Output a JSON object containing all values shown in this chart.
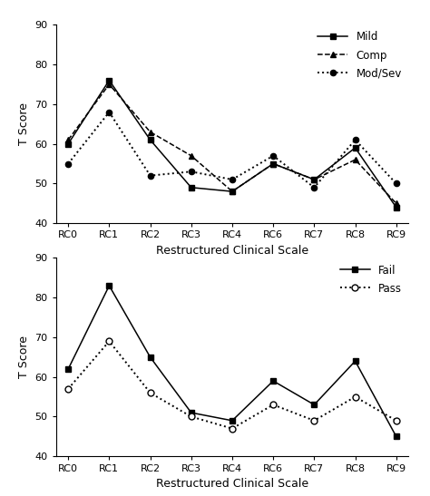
{
  "x_labels": [
    "RC0",
    "RC1",
    "RC2",
    "RC3",
    "RC4",
    "RC6",
    "RC7",
    "RC8",
    "RC9"
  ],
  "top": {
    "mild": [
      60,
      76,
      61,
      49,
      48,
      55,
      51,
      59,
      44
    ],
    "comp": [
      61,
      75,
      63,
      57,
      48,
      55,
      51,
      56,
      45
    ],
    "modsev": [
      55,
      68,
      52,
      53,
      51,
      57,
      49,
      61,
      50
    ],
    "legend": [
      "Mild",
      "Comp",
      "Mod/Sev"
    ],
    "ylabel": "T Score",
    "xlabel": "Restructured Clinical Scale",
    "ylim": [
      40,
      90
    ],
    "yticks": [
      40,
      50,
      60,
      70,
      80,
      90
    ]
  },
  "bottom": {
    "fail": [
      62,
      83,
      65,
      51,
      49,
      59,
      53,
      64,
      45
    ],
    "pass": [
      57,
      69,
      56,
      50,
      47,
      53,
      49,
      55,
      49
    ],
    "legend": [
      "Fail",
      "Pass"
    ],
    "ylabel": "T Score",
    "xlabel": "Restructured Clinical Scale",
    "ylim": [
      40,
      90
    ],
    "yticks": [
      40,
      50,
      60,
      70,
      80,
      90
    ]
  },
  "line_color": "#000000",
  "fig_bg": "#ffffff"
}
